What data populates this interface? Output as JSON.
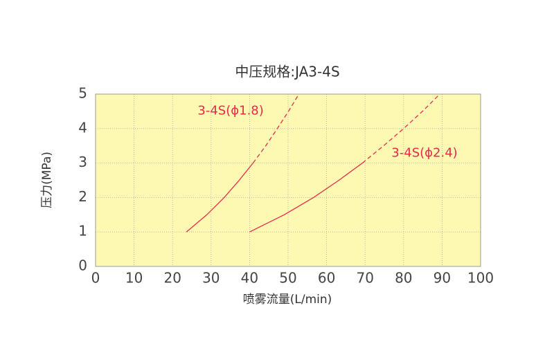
{
  "chart_data": {
    "type": "line",
    "title": "中压规格:JA3-4S",
    "x_label": "喷雾流量(L/min)",
    "y_label": "压力(MPa)",
    "xlim": [
      0,
      100
    ],
    "xticks": [
      0,
      10,
      20,
      30,
      40,
      50,
      60,
      70,
      80,
      90,
      100
    ],
    "ylim": [
      0,
      5
    ],
    "yticks": [
      0,
      1,
      2,
      3,
      4,
      5
    ],
    "grid": true,
    "background": "#fdf9b3",
    "series": [
      {
        "name": "3-4S(ϕ1.8)",
        "color": "#e8294a",
        "style": "solid",
        "x": [
          23.6,
          28.9,
          33.4,
          37.3,
          40.9
        ],
        "values": [
          1,
          1.5,
          2,
          2.5,
          3
        ]
      },
      {
        "color": "#e8294a",
        "style": "dashed",
        "x": [
          40.9,
          44.2,
          47.2,
          50.1,
          52.8
        ],
        "values": [
          3,
          3.5,
          4,
          4.5,
          5
        ]
      },
      {
        "name": "3-4S(ϕ2.4)",
        "color": "#e8294a",
        "style": "solid",
        "x": [
          40,
          49.0,
          56.6,
          63.2,
          69.3
        ],
        "values": [
          1,
          1.5,
          2,
          2.5,
          3
        ]
      },
      {
        "color": "#e8294a",
        "style": "dashed",
        "x": [
          69.3,
          74.8,
          80,
          84.9,
          89.4
        ],
        "values": [
          3,
          3.5,
          4,
          4.5,
          5
        ]
      }
    ]
  }
}
